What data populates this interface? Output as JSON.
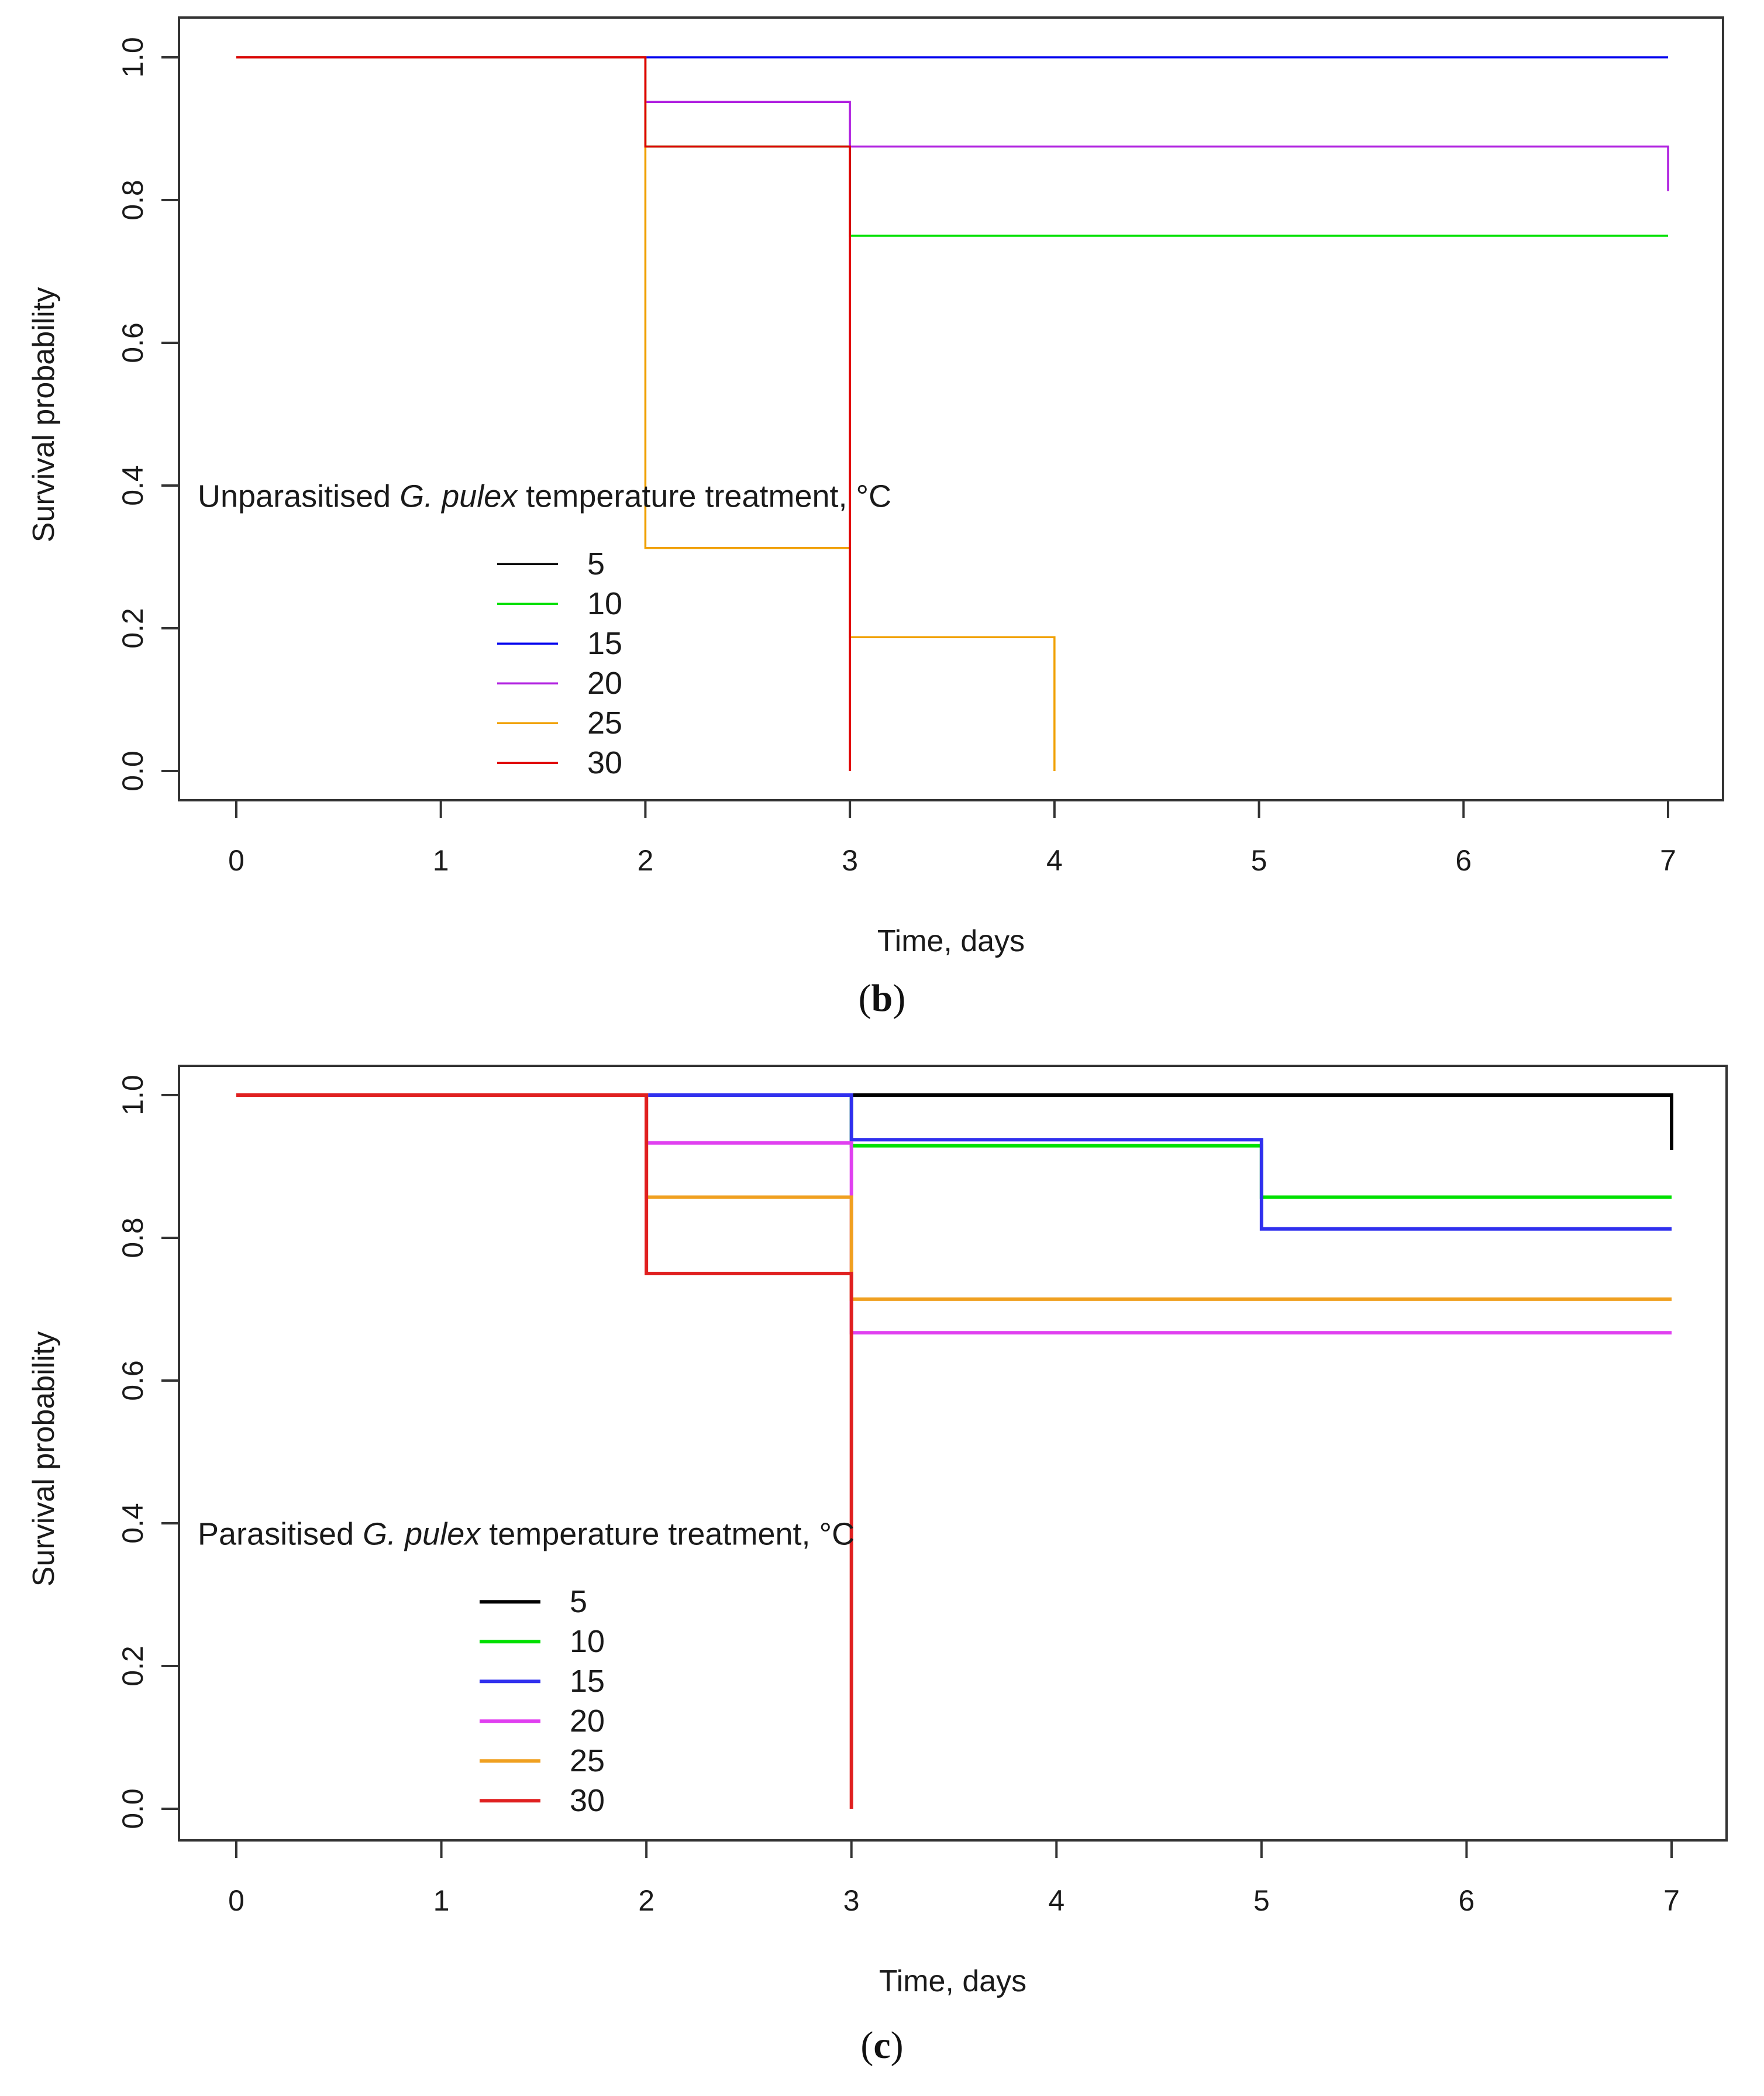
{
  "chart_data": [
    {
      "type": "line",
      "step": true,
      "panel_label_open": "(",
      "panel_label_letter": "b",
      "panel_label_close": ")",
      "xlabel": "Time, days",
      "ylabel": "Survival probability",
      "xlim": [
        0,
        7
      ],
      "ylim": [
        0,
        1
      ],
      "xticks": [
        "0",
        "1",
        "2",
        "3",
        "4",
        "5",
        "6",
        "7"
      ],
      "yticks": [
        "0.0",
        "0.2",
        "0.4",
        "0.6",
        "0.8",
        "1.0"
      ],
      "legend_title": {
        "prefix": "Unparasitised ",
        "italic": "G. pulex",
        "suffix": " temperature treatment, °C"
      },
      "legend_position": "lower-left",
      "series": [
        {
          "name": "5",
          "color": "#000000",
          "x": [],
          "y": []
        },
        {
          "name": "10",
          "color": "#00e000",
          "x": [
            0,
            2,
            3,
            7
          ],
          "y": [
            1.0,
            0.875,
            0.75,
            0.75
          ]
        },
        {
          "name": "15",
          "color": "#0000ee",
          "x": [
            0,
            7
          ],
          "y": [
            1.0,
            1.0
          ]
        },
        {
          "name": "20",
          "color": "#b020e0",
          "x": [
            0,
            2,
            3,
            7,
            7
          ],
          "y": [
            1.0,
            0.9375,
            0.875,
            0.875,
            0.8125
          ]
        },
        {
          "name": "25",
          "color": "#f0a000",
          "x": [
            0,
            2,
            3,
            4,
            4
          ],
          "y": [
            1.0,
            0.3125,
            0.1875,
            0.1875,
            0.0
          ]
        },
        {
          "name": "30",
          "color": "#e00000",
          "x": [
            0,
            2,
            3,
            3
          ],
          "y": [
            1.0,
            0.875,
            0.875,
            0.0
          ]
        }
      ]
    },
    {
      "type": "line",
      "step": true,
      "panel_label_open": "(",
      "panel_label_letter": "c",
      "panel_label_close": ")",
      "xlabel": "Time, days",
      "ylabel": "Survival probability",
      "xlim": [
        0,
        7
      ],
      "ylim": [
        0,
        1
      ],
      "xticks": [
        "0",
        "1",
        "2",
        "3",
        "4",
        "5",
        "6",
        "7"
      ],
      "yticks": [
        "0.0",
        "0.2",
        "0.4",
        "0.6",
        "0.8",
        "1.0"
      ],
      "legend_title": {
        "prefix": "Parasitised ",
        "italic": "G. pulex",
        "suffix": " temperature treatment, °C"
      },
      "legend_position": "lower-left",
      "series": [
        {
          "name": "5",
          "color": "#000000",
          "x": [
            0,
            7,
            7
          ],
          "y": [
            1.0,
            1.0,
            0.923
          ]
        },
        {
          "name": "10",
          "color": "#00e000",
          "x": [
            0,
            3,
            5,
            7
          ],
          "y": [
            1.0,
            0.929,
            0.857,
            0.857
          ]
        },
        {
          "name": "15",
          "color": "#3030ee",
          "x": [
            0,
            3,
            5,
            7
          ],
          "y": [
            1.0,
            0.9375,
            0.8125,
            0.8125
          ]
        },
        {
          "name": "20",
          "color": "#e040f0",
          "x": [
            0,
            2,
            3,
            7
          ],
          "y": [
            1.0,
            0.933,
            0.667,
            0.667
          ]
        },
        {
          "name": "25",
          "color": "#f0a020",
          "x": [
            0,
            2,
            3,
            7
          ],
          "y": [
            1.0,
            0.857,
            0.714,
            0.714
          ]
        },
        {
          "name": "30",
          "color": "#e02020",
          "x": [
            0,
            2,
            3,
            3
          ],
          "y": [
            1.0,
            0.75,
            0.75,
            0.0
          ]
        }
      ]
    }
  ]
}
